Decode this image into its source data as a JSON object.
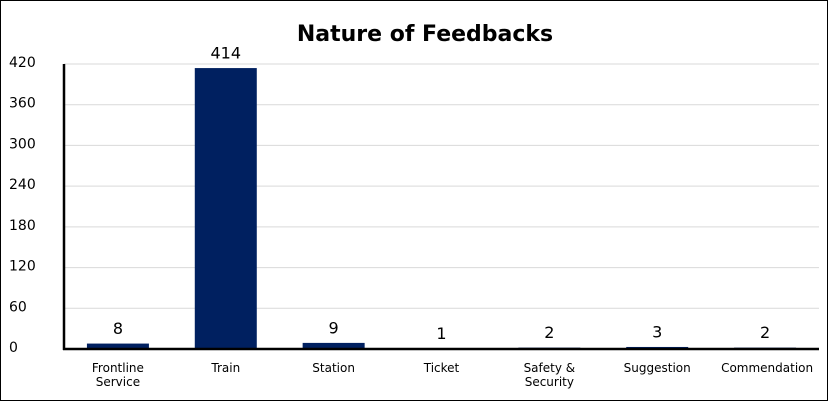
{
  "chart_data": {
    "type": "bar",
    "title": "Nature of Feedbacks",
    "categories": [
      "Frontline Service",
      "Train",
      "Station",
      "Ticket",
      "Safety & Security",
      "Suggestion",
      "Commendation"
    ],
    "values": [
      8,
      414,
      9,
      1,
      2,
      3,
      2
    ],
    "color": "#002060",
    "ylim": [
      0,
      420
    ],
    "yticks": [
      0,
      60,
      120,
      180,
      240,
      300,
      360,
      420
    ],
    "grid": true,
    "data_labels": true
  }
}
